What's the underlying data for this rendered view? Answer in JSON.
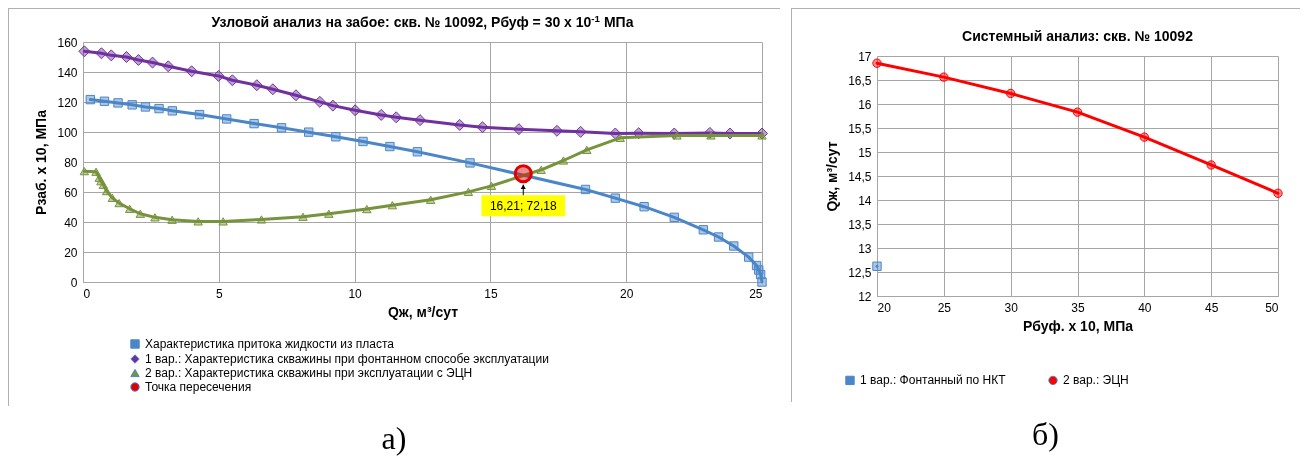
{
  "chart_data": [
    {
      "type": "line",
      "title": "Узловой анализ на забое: скв. № 10092, Рбуф = 30 x 10$^{-1}$ МПа",
      "xlabel": "Qж, м³/сут",
      "ylabel": "Рзаб. x 10, МПа",
      "xlim": [
        0,
        25
      ],
      "xticks": [
        0,
        5,
        10,
        15,
        20,
        25
      ],
      "ylim": [
        0,
        160
      ],
      "yticks": [
        0,
        20,
        40,
        60,
        80,
        100,
        120,
        140,
        160
      ],
      "grid": true,
      "legend": "bottom",
      "series": [
        {
          "name": "Характеристика притока жидкости из пласта",
          "color": "#4a86c8",
          "marker": "square",
          "x": [
            0.27,
            0.79,
            1.29,
            1.81,
            2.3,
            2.8,
            3.29,
            4.29,
            5.29,
            6.3,
            7.31,
            8.31,
            9.31,
            10.31,
            11.3,
            12.31,
            14.25,
            18.5,
            19.6,
            20.66,
            21.77,
            22.84,
            23.4,
            23.96,
            24.51,
            24.8,
            24.88,
            24.95,
            25
          ],
          "values": [
            121.6,
            120.5,
            119.4,
            118.1,
            116.7,
            115.6,
            114.1,
            111.6,
            108.7,
            105.6,
            102.8,
            99.9,
            96.8,
            93.7,
            90.3,
            86.8,
            79.4,
            61.7,
            55.9,
            50.2,
            43.1,
            34.8,
            30,
            24,
            16.6,
            11,
            8,
            5,
            0
          ]
        },
        {
          "name": "1 вар.: Характеристика скважины при фонтанном способе эксплуатации",
          "color": "#7030a0",
          "marker": "diamond",
          "x": [
            0.05,
            0.68,
            1.04,
            1.6,
            2.04,
            2.56,
            3.14,
            4,
            4.99,
            5.5,
            6.4,
            6.99,
            7.84,
            8.72,
            9.2,
            10.02,
            10.98,
            11.53,
            12.41,
            13.87,
            14.71,
            16.05,
            17.45,
            18.32,
            19.6,
            20.46,
            21.77,
            23.08,
            23.82,
            25
          ],
          "values": [
            153.8,
            152.5,
            151.1,
            150,
            148,
            146.3,
            143.8,
            140.5,
            137.4,
            134.5,
            131.2,
            128.5,
            124.5,
            120.1,
            117.6,
            114.5,
            111.4,
            109.8,
            107.9,
            104.7,
            103.2,
            101.9,
            100.8,
            100.1,
            99,
            99.2,
            99,
            99.4,
            99,
            99
          ]
        },
        {
          "name": "2 вар.: Характеристика скважины при эксплуатации с ЭЦН",
          "color": "#77933c",
          "marker": "triangle",
          "x": [
            0.05,
            0.48,
            0.6,
            0.66,
            0.75,
            0.87,
            1.08,
            1.33,
            1.72,
            2.11,
            2.65,
            3.28,
            4.24,
            5.16,
            6.57,
            8.1,
            9.05,
            10.45,
            11.39,
            12.8,
            14.19,
            15.04,
            16.87,
            17.69,
            18.55,
            19.78,
            21.87,
            23.12,
            25
          ],
          "values": [
            73.9,
            73.5,
            69.5,
            67.2,
            64.8,
            60.6,
            56.1,
            52.6,
            48.8,
            45.5,
            43.1,
            41.5,
            40.4,
            40.4,
            41.7,
            43.5,
            45.5,
            48.6,
            51.2,
            54.8,
            60.1,
            64.1,
            74.8,
            81,
            88.1,
            96.1,
            97.7,
            97.7,
            97.7
          ]
        },
        {
          "name": "Точка пересечения",
          "type": "scatter",
          "color": "#e00000",
          "marker": "circle",
          "x": [
            16.21
          ],
          "values": [
            72.18
          ]
        }
      ],
      "annotations": [
        {
          "text": "16,21; 72,18",
          "x": 16.21,
          "y": 72.18
        },
        "а)"
      ]
    },
    {
      "type": "line",
      "title": "Системный анализ: скв. № 10092",
      "xlabel": "Рбуф. x 10, МПа",
      "ylabel": "Qж, м³/сут",
      "xlim": [
        20,
        50
      ],
      "xticks": [
        20,
        25,
        30,
        35,
        40,
        45,
        50
      ],
      "ylim": [
        12,
        17
      ],
      "yticks": [
        12,
        {
          "value": 12.5,
          "label": "12,5"
        },
        13,
        {
          "value": 13.5,
          "label": "13,5"
        },
        14,
        {
          "value": 14.5,
          "label": "14,5"
        },
        15,
        {
          "value": 15.5,
          "label": "15,5"
        },
        16,
        {
          "value": 16.5,
          "label": "16,5"
        },
        17
      ],
      "grid": true,
      "legend": "bottom",
      "x": [
        20,
        25,
        30,
        35,
        40,
        45,
        50
      ],
      "series": [
        {
          "name": "1 вар.: Фонтанный по НКТ",
          "color": "#4a86c8",
          "marker": "square",
          "values": [
            12.62,
            null,
            null,
            null,
            null,
            null,
            null
          ]
        },
        {
          "name": "2 вар.: ЭЦН",
          "color": "#ff0000",
          "marker": "circle",
          "values": [
            16.85,
            16.56,
            16.22,
            15.83,
            15.31,
            14.73,
            14.14
          ]
        }
      ],
      "annotations": [
        "б)"
      ]
    }
  ]
}
